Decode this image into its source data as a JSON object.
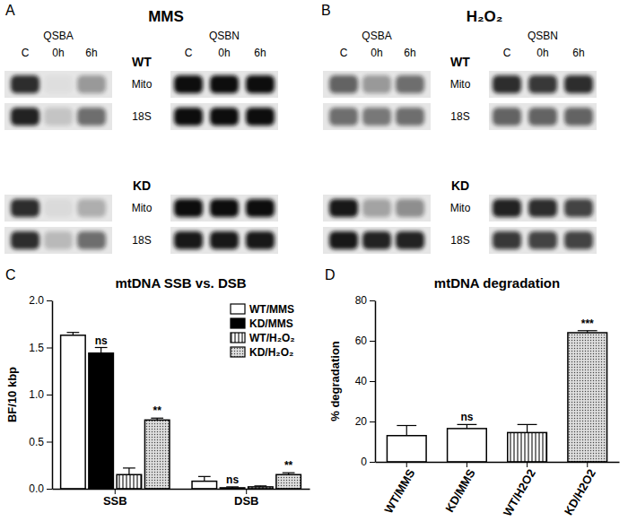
{
  "panel_labels": [
    "A",
    "B",
    "C",
    "D"
  ],
  "blots": [
    {
      "title": "MMS",
      "assays": [
        "QSBA",
        "QSBN"
      ],
      "lanes": [
        "C",
        "0h",
        "6h"
      ],
      "groups": [
        {
          "label": "WT",
          "rows": [
            {
              "label": "Mito",
              "intensity": [
                [
                  0.85,
                  0.03,
                  0.35
                ],
                [
                  1,
                  1,
                  1
                ]
              ]
            },
            {
              "label": "18S",
              "intensity": [
                [
                  0.9,
                  0.15,
                  0.55
                ],
                [
                  1,
                  1,
                  1
                ]
              ]
            }
          ]
        },
        {
          "label": "KD",
          "rows": [
            {
              "label": "Mito",
              "intensity": [
                [
                  0.85,
                  0.05,
                  0.25
                ],
                [
                  1,
                  1,
                  1
                ]
              ]
            },
            {
              "label": "18S",
              "intensity": [
                [
                  0.85,
                  0.2,
                  0.55
                ],
                [
                  0.95,
                  0.95,
                  0.95
                ]
              ]
            }
          ]
        }
      ]
    },
    {
      "title": "H₂O₂",
      "assays": [
        "QSBA",
        "QSBN"
      ],
      "lanes": [
        "C",
        "0h",
        "6h"
      ],
      "groups": [
        {
          "label": "WT",
          "rows": [
            {
              "label": "Mito",
              "intensity": [
                [
                  0.6,
                  0.35,
                  0.55
                ],
                [
                  0.85,
                  0.8,
                  0.85
                ]
              ]
            },
            {
              "label": "18S",
              "intensity": [
                [
                  0.55,
                  0.5,
                  0.55
                ],
                [
                  0.6,
                  0.6,
                  0.6
                ]
              ]
            }
          ]
        },
        {
          "label": "KD",
          "rows": [
            {
              "label": "Mito",
              "intensity": [
                [
                  0.95,
                  0.3,
                  0.4
                ],
                [
                  0.9,
                  0.85,
                  0.75
                ]
              ]
            },
            {
              "label": "18S",
              "intensity": [
                [
                  0.95,
                  0.9,
                  0.9
                ],
                [
                  0.8,
                  0.75,
                  0.75
                ]
              ]
            }
          ]
        }
      ]
    }
  ],
  "chart_data": [
    {
      "type": "bar",
      "title": "mtDNA SSB vs. DSB",
      "ylabel": "BF/10 kbp",
      "categories": [
        "SSB",
        "DSB"
      ],
      "series": [
        {
          "name": "WT/MMS",
          "color": "#ffffff",
          "values": [
            1.63,
            0.08
          ],
          "errors": [
            0.03,
            0.05
          ]
        },
        {
          "name": "KD/MMS",
          "color": "#000000",
          "values": [
            1.44,
            0.01
          ],
          "errors": [
            0.06,
            0.01
          ]
        },
        {
          "name": "WT/H₂O₂",
          "color": "#ffffff",
          "values": [
            0.15,
            0.02
          ],
          "errors": [
            0.07,
            0.01
          ]
        },
        {
          "name": "KD/H₂O₂",
          "color": "#bbbbbb",
          "values": [
            0.73,
            0.15
          ],
          "errors": [
            0.02,
            0.02
          ]
        }
      ],
      "ylim": [
        0,
        2.0
      ],
      "yticks": [
        {
          "value": 0,
          "label": "0.0"
        },
        {
          "value": 0.5,
          "label": "0.5"
        },
        {
          "value": 1.0,
          "label": "1.0"
        },
        {
          "value": 1.5,
          "label": "1.5"
        },
        {
          "value": 2.0,
          "label": "2.0"
        }
      ],
      "legend": "top-right",
      "annotations": [
        {
          "text": "ns",
          "category": 0,
          "series": 1
        },
        {
          "text": "**",
          "category": 0,
          "series": 3
        },
        {
          "text": "ns",
          "category": 1,
          "series": 1
        },
        {
          "text": "**",
          "category": 1,
          "series": 3
        }
      ]
    },
    {
      "type": "bar",
      "title": "mtDNA degradation",
      "ylabel": "% degradation",
      "categories": [
        "WT/MMS",
        "KD/MMS",
        "WT/H2O2",
        "KD/H2O2"
      ],
      "values": [
        13,
        16.5,
        14.5,
        64
      ],
      "errors": [
        5,
        2,
        4,
        1
      ],
      "colors": [
        "#ffffff",
        "#ffffff",
        "#ffffff",
        "#bbbbbb"
      ],
      "ylim": [
        0,
        80
      ],
      "yticks": [
        0,
        20,
        40,
        60,
        80
      ],
      "annotations": [
        {
          "text": "ns",
          "category": 1
        },
        {
          "text": "***",
          "category": 3
        }
      ]
    }
  ]
}
